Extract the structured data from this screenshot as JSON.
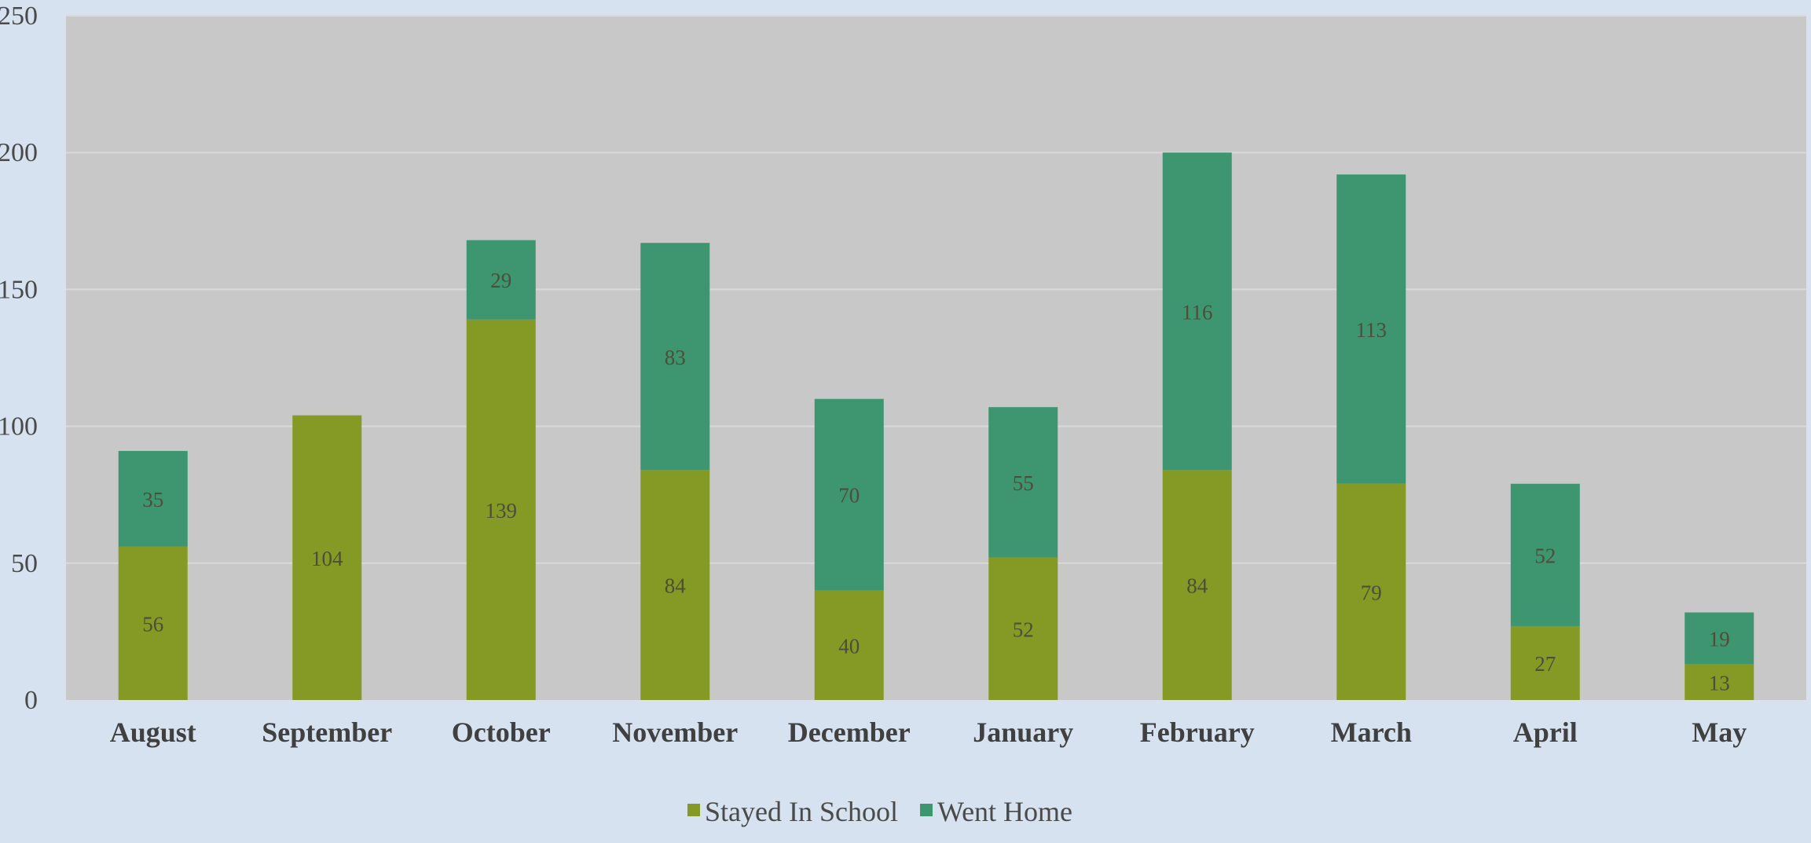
{
  "chart_data": {
    "type": "bar",
    "stacked": true,
    "title": "",
    "xlabel": "",
    "ylabel": "",
    "ylim": [
      0,
      250
    ],
    "yticks": [
      0,
      50,
      100,
      150,
      200,
      250
    ],
    "grid": true,
    "legend_position": "bottom",
    "categories": [
      "August",
      "September",
      "October",
      "November",
      "December",
      "January",
      "February",
      "March",
      "April",
      "May"
    ],
    "series": [
      {
        "name": "Stayed In School",
        "color": "#849a25",
        "values": [
          56,
          104,
          139,
          84,
          40,
          52,
          84,
          79,
          27,
          13
        ],
        "labels": [
          "56",
          "104",
          "139",
          "84",
          "40",
          "52",
          "84",
          "79",
          "27",
          "13"
        ]
      },
      {
        "name": "Went Home",
        "color": "#3e9670",
        "values": [
          35,
          0,
          29,
          83,
          70,
          55,
          116,
          113,
          52,
          19
        ],
        "labels": [
          "35",
          "",
          "29",
          "83",
          "70",
          "55",
          "116",
          "113",
          "52",
          "19"
        ]
      }
    ]
  }
}
